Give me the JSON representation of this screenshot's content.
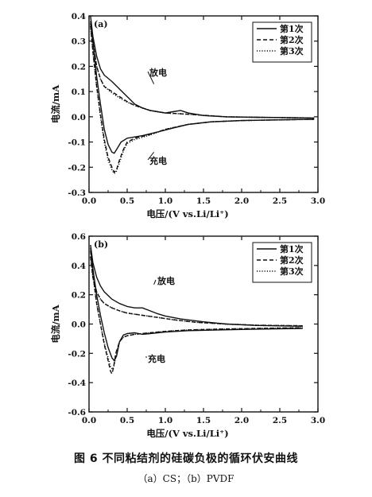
{
  "figure": {
    "caption": "图 6   不同粘结剂的硅碳负极的循环伏安曲线",
    "subcaption": "（a）CS；（b）PVDF"
  },
  "chart_data": [
    {
      "type": "line",
      "panel_label": "(a)",
      "xlabel": "电压/(V vs.Li/Li⁺)",
      "ylabel": "电流/mA",
      "xlim": [
        0,
        3.0
      ],
      "ylim": [
        -0.3,
        0.4
      ],
      "xticks": [
        "0.0",
        "0.5",
        "1.0",
        "1.5",
        "2.0",
        "2.5",
        "3.0"
      ],
      "yticks": [
        "-0.3",
        "-0.2",
        "-0.1",
        "0.0",
        "0.1",
        "0.2",
        "0.3",
        "0.4"
      ],
      "legend_position": "top-right",
      "annotations": [
        {
          "text": "放电",
          "x": 0.85,
          "y": 0.13
        },
        {
          "text": "充电",
          "x": 0.85,
          "y": -0.14
        }
      ],
      "series": [
        {
          "name": "第1次",
          "style": "solid",
          "charge": [
            [
              0.02,
              0.38
            ],
            [
              0.05,
              0.3
            ],
            [
              0.1,
              0.16
            ],
            [
              0.15,
              0.05
            ],
            [
              0.2,
              -0.05
            ],
            [
              0.25,
              -0.11
            ],
            [
              0.3,
              -0.14
            ],
            [
              0.33,
              -0.145
            ],
            [
              0.36,
              -0.13
            ],
            [
              0.42,
              -0.1
            ],
            [
              0.5,
              -0.085
            ],
            [
              0.6,
              -0.08
            ],
            [
              0.7,
              -0.075
            ],
            [
              0.9,
              -0.06
            ],
            [
              1.1,
              -0.045
            ],
            [
              1.3,
              -0.03
            ],
            [
              1.6,
              -0.02
            ],
            [
              2.0,
              -0.015
            ],
            [
              2.5,
              -0.012
            ],
            [
              2.95,
              -0.01
            ]
          ],
          "discharge": [
            [
              0.02,
              0.4
            ],
            [
              0.05,
              0.32
            ],
            [
              0.1,
              0.24
            ],
            [
              0.15,
              0.19
            ],
            [
              0.2,
              0.165
            ],
            [
              0.3,
              0.14
            ],
            [
              0.4,
              0.11
            ],
            [
              0.5,
              0.08
            ],
            [
              0.6,
              0.05
            ],
            [
              0.7,
              0.035
            ],
            [
              0.8,
              0.025
            ],
            [
              0.9,
              0.02
            ],
            [
              1.0,
              0.015
            ],
            [
              1.1,
              0.02
            ],
            [
              1.2,
              0.025
            ],
            [
              1.3,
              0.015
            ],
            [
              1.5,
              0.005
            ],
            [
              1.8,
              0.0
            ],
            [
              2.2,
              -0.002
            ],
            [
              2.95,
              -0.005
            ]
          ]
        },
        {
          "name": "第2次",
          "style": "dashed",
          "charge": [
            [
              0.02,
              0.36
            ],
            [
              0.05,
              0.26
            ],
            [
              0.1,
              0.12
            ],
            [
              0.15,
              0.01
            ],
            [
              0.2,
              -0.09
            ],
            [
              0.25,
              -0.16
            ],
            [
              0.3,
              -0.2
            ],
            [
              0.33,
              -0.22
            ],
            [
              0.36,
              -0.21
            ],
            [
              0.4,
              -0.17
            ],
            [
              0.45,
              -0.13
            ],
            [
              0.5,
              -0.1
            ],
            [
              0.6,
              -0.085
            ],
            [
              0.8,
              -0.07
            ],
            [
              1.0,
              -0.05
            ],
            [
              1.3,
              -0.03
            ],
            [
              1.6,
              -0.02
            ],
            [
              2.0,
              -0.015
            ],
            [
              2.95,
              -0.01
            ]
          ],
          "discharge": [
            [
              0.02,
              0.37
            ],
            [
              0.05,
              0.3
            ],
            [
              0.1,
              0.2
            ],
            [
              0.15,
              0.15
            ],
            [
              0.2,
              0.12
            ],
            [
              0.3,
              0.1
            ],
            [
              0.4,
              0.08
            ],
            [
              0.5,
              0.06
            ],
            [
              0.6,
              0.045
            ],
            [
              0.7,
              0.035
            ],
            [
              0.8,
              0.025
            ],
            [
              1.0,
              0.015
            ],
            [
              1.2,
              0.012
            ],
            [
              1.4,
              0.008
            ],
            [
              1.8,
              0.0
            ],
            [
              2.2,
              -0.002
            ],
            [
              2.95,
              -0.005
            ]
          ]
        },
        {
          "name": "第3次",
          "style": "dotted",
          "charge": [
            [
              0.02,
              0.36
            ],
            [
              0.05,
              0.26
            ],
            [
              0.1,
              0.12
            ],
            [
              0.15,
              0.0
            ],
            [
              0.2,
              -0.1
            ],
            [
              0.25,
              -0.17
            ],
            [
              0.3,
              -0.21
            ],
            [
              0.33,
              -0.225
            ],
            [
              0.36,
              -0.215
            ],
            [
              0.4,
              -0.18
            ],
            [
              0.45,
              -0.135
            ],
            [
              0.5,
              -0.105
            ],
            [
              0.6,
              -0.09
            ],
            [
              0.8,
              -0.072
            ],
            [
              1.0,
              -0.05
            ],
            [
              1.3,
              -0.03
            ],
            [
              1.6,
              -0.02
            ],
            [
              2.0,
              -0.015
            ],
            [
              2.95,
              -0.01
            ]
          ],
          "discharge": [
            [
              0.02,
              0.37
            ],
            [
              0.05,
              0.3
            ],
            [
              0.1,
              0.2
            ],
            [
              0.15,
              0.15
            ],
            [
              0.2,
              0.12
            ],
            [
              0.3,
              0.095
            ],
            [
              0.4,
              0.075
            ],
            [
              0.5,
              0.058
            ],
            [
              0.6,
              0.045
            ],
            [
              0.7,
              0.035
            ],
            [
              0.8,
              0.025
            ],
            [
              1.0,
              0.015
            ],
            [
              1.2,
              0.012
            ],
            [
              1.4,
              0.008
            ],
            [
              1.8,
              0.0
            ],
            [
              2.2,
              -0.002
            ],
            [
              2.95,
              -0.005
            ]
          ]
        }
      ]
    },
    {
      "type": "line",
      "panel_label": "(b)",
      "xlabel": "电压/(V vs.Li/Li⁺)",
      "ylabel": "电流/mA",
      "xlim": [
        0,
        3.0
      ],
      "ylim": [
        -0.6,
        0.6
      ],
      "xticks": [
        "0.0",
        "0.5",
        "1.0",
        "1.5",
        "2.0",
        "2.5",
        "3.0"
      ],
      "yticks": [
        "-0.6",
        "-0.4",
        "-0.2",
        "0.0",
        "0.2",
        "0.4",
        "0.6"
      ],
      "legend_position": "top-right",
      "annotations": [
        {
          "text": "放电",
          "x": 0.85,
          "y": 0.27
        },
        {
          "text": "充电",
          "x": 0.75,
          "y": -0.22
        }
      ],
      "series": [
        {
          "name": "第1次",
          "style": "solid",
          "charge": [
            [
              0.02,
              0.52
            ],
            [
              0.05,
              0.38
            ],
            [
              0.1,
              0.2
            ],
            [
              0.15,
              0.06
            ],
            [
              0.2,
              -0.06
            ],
            [
              0.25,
              -0.16
            ],
            [
              0.3,
              -0.23
            ],
            [
              0.33,
              -0.25
            ],
            [
              0.36,
              -0.22
            ],
            [
              0.4,
              -0.12
            ],
            [
              0.45,
              -0.075
            ],
            [
              0.5,
              -0.065
            ],
            [
              0.6,
              -0.06
            ],
            [
              0.7,
              -0.07
            ],
            [
              0.8,
              -0.065
            ],
            [
              1.0,
              -0.055
            ],
            [
              1.3,
              -0.045
            ],
            [
              1.7,
              -0.04
            ],
            [
              2.2,
              -0.035
            ],
            [
              2.8,
              -0.03
            ]
          ],
          "discharge": [
            [
              0.02,
              0.54
            ],
            [
              0.05,
              0.42
            ],
            [
              0.1,
              0.32
            ],
            [
              0.15,
              0.26
            ],
            [
              0.2,
              0.22
            ],
            [
              0.3,
              0.17
            ],
            [
              0.4,
              0.14
            ],
            [
              0.5,
              0.12
            ],
            [
              0.6,
              0.11
            ],
            [
              0.7,
              0.11
            ],
            [
              0.8,
              0.09
            ],
            [
              0.9,
              0.07
            ],
            [
              1.0,
              0.055
            ],
            [
              1.2,
              0.035
            ],
            [
              1.5,
              0.015
            ],
            [
              1.8,
              0.0
            ],
            [
              2.2,
              -0.01
            ],
            [
              2.8,
              -0.015
            ]
          ]
        },
        {
          "name": "第2次",
          "style": "dashed",
          "charge": [
            [
              0.02,
              0.5
            ],
            [
              0.05,
              0.34
            ],
            [
              0.1,
              0.14
            ],
            [
              0.15,
              0.0
            ],
            [
              0.2,
              -0.14
            ],
            [
              0.25,
              -0.25
            ],
            [
              0.28,
              -0.32
            ],
            [
              0.3,
              -0.34
            ],
            [
              0.32,
              -0.3
            ],
            [
              0.35,
              -0.2
            ],
            [
              0.4,
              -0.12
            ],
            [
              0.45,
              -0.09
            ],
            [
              0.5,
              -0.08
            ],
            [
              0.6,
              -0.07
            ],
            [
              0.8,
              -0.06
            ],
            [
              1.0,
              -0.05
            ],
            [
              1.3,
              -0.04
            ],
            [
              1.7,
              -0.035
            ],
            [
              2.2,
              -0.03
            ],
            [
              2.8,
              -0.025
            ]
          ],
          "discharge": [
            [
              0.02,
              0.46
            ],
            [
              0.05,
              0.32
            ],
            [
              0.1,
              0.22
            ],
            [
              0.15,
              0.17
            ],
            [
              0.2,
              0.14
            ],
            [
              0.3,
              0.11
            ],
            [
              0.4,
              0.09
            ],
            [
              0.5,
              0.075
            ],
            [
              0.7,
              0.06
            ],
            [
              0.9,
              0.045
            ],
            [
              1.1,
              0.03
            ],
            [
              1.4,
              0.012
            ],
            [
              1.8,
              0.0
            ],
            [
              2.2,
              -0.008
            ],
            [
              2.8,
              -0.012
            ]
          ]
        },
        {
          "name": "第3次",
          "style": "dotted",
          "charge": [
            [
              0.02,
              0.5
            ],
            [
              0.05,
              0.34
            ],
            [
              0.1,
              0.14
            ],
            [
              0.15,
              0.0
            ],
            [
              0.2,
              -0.13
            ],
            [
              0.25,
              -0.23
            ],
            [
              0.28,
              -0.29
            ],
            [
              0.31,
              -0.31
            ],
            [
              0.33,
              -0.28
            ],
            [
              0.36,
              -0.19
            ],
            [
              0.4,
              -0.12
            ],
            [
              0.45,
              -0.09
            ],
            [
              0.5,
              -0.08
            ],
            [
              0.6,
              -0.07
            ],
            [
              0.8,
              -0.06
            ],
            [
              1.0,
              -0.05
            ],
            [
              1.3,
              -0.04
            ],
            [
              1.7,
              -0.035
            ],
            [
              2.2,
              -0.03
            ],
            [
              2.8,
              -0.025
            ]
          ],
          "discharge": [
            [
              0.02,
              0.46
            ],
            [
              0.05,
              0.32
            ],
            [
              0.1,
              0.22
            ],
            [
              0.15,
              0.17
            ],
            [
              0.2,
              0.14
            ],
            [
              0.3,
              0.11
            ],
            [
              0.4,
              0.09
            ],
            [
              0.5,
              0.075
            ],
            [
              0.7,
              0.06
            ],
            [
              0.9,
              0.045
            ],
            [
              1.1,
              0.03
            ],
            [
              1.4,
              0.012
            ],
            [
              1.8,
              0.0
            ],
            [
              2.2,
              -0.008
            ],
            [
              2.8,
              -0.012
            ]
          ]
        }
      ]
    }
  ]
}
